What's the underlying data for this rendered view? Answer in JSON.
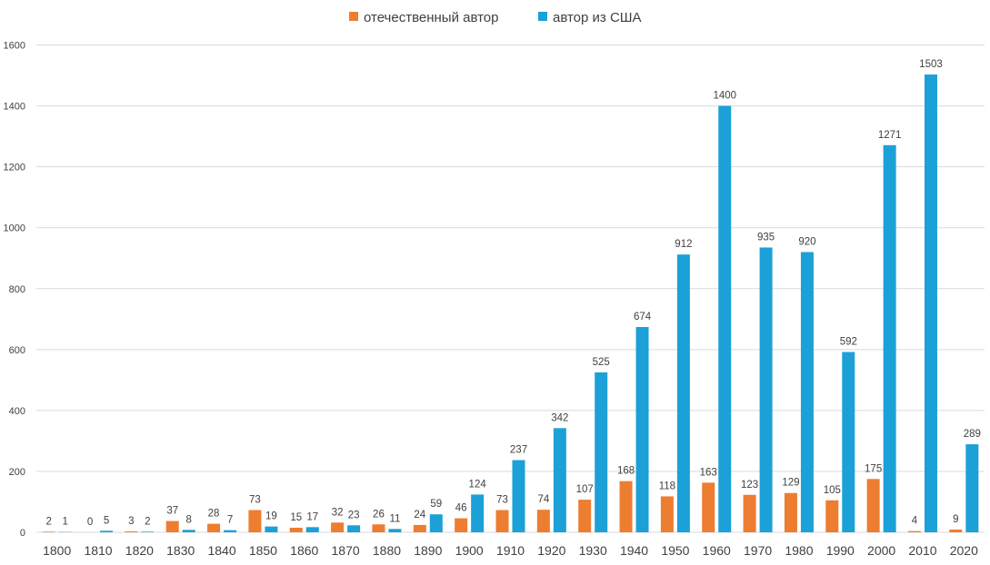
{
  "chart_data": {
    "type": "bar",
    "categories": [
      "1800",
      "1810",
      "1820",
      "1830",
      "1840",
      "1850",
      "1860",
      "1870",
      "1880",
      "1890",
      "1900",
      "1910",
      "1920",
      "1930",
      "1940",
      "1950",
      "1960",
      "1970",
      "1980",
      "1990",
      "2000",
      "2010",
      "2020"
    ],
    "series": [
      {
        "name": "отечественный автор",
        "color": "#ed7d31",
        "values": [
          2,
          0,
          3,
          37,
          28,
          73,
          15,
          32,
          26,
          24,
          46,
          73,
          74,
          107,
          168,
          118,
          163,
          123,
          129,
          105,
          175,
          4,
          9
        ]
      },
      {
        "name": "автор из США",
        "color": "#1ba1d8",
        "values": [
          1,
          5,
          2,
          8,
          7,
          19,
          17,
          23,
          11,
          59,
          124,
          237,
          342,
          525,
          674,
          912,
          1400,
          935,
          920,
          592,
          1271,
          1503,
          289
        ]
      }
    ],
    "ylim": [
      0,
      1600
    ],
    "yticks": [
      0,
      200,
      400,
      600,
      800,
      1000,
      1200,
      1400,
      1600
    ],
    "grid": true,
    "legend_position": "top-center",
    "data_labels": true
  }
}
